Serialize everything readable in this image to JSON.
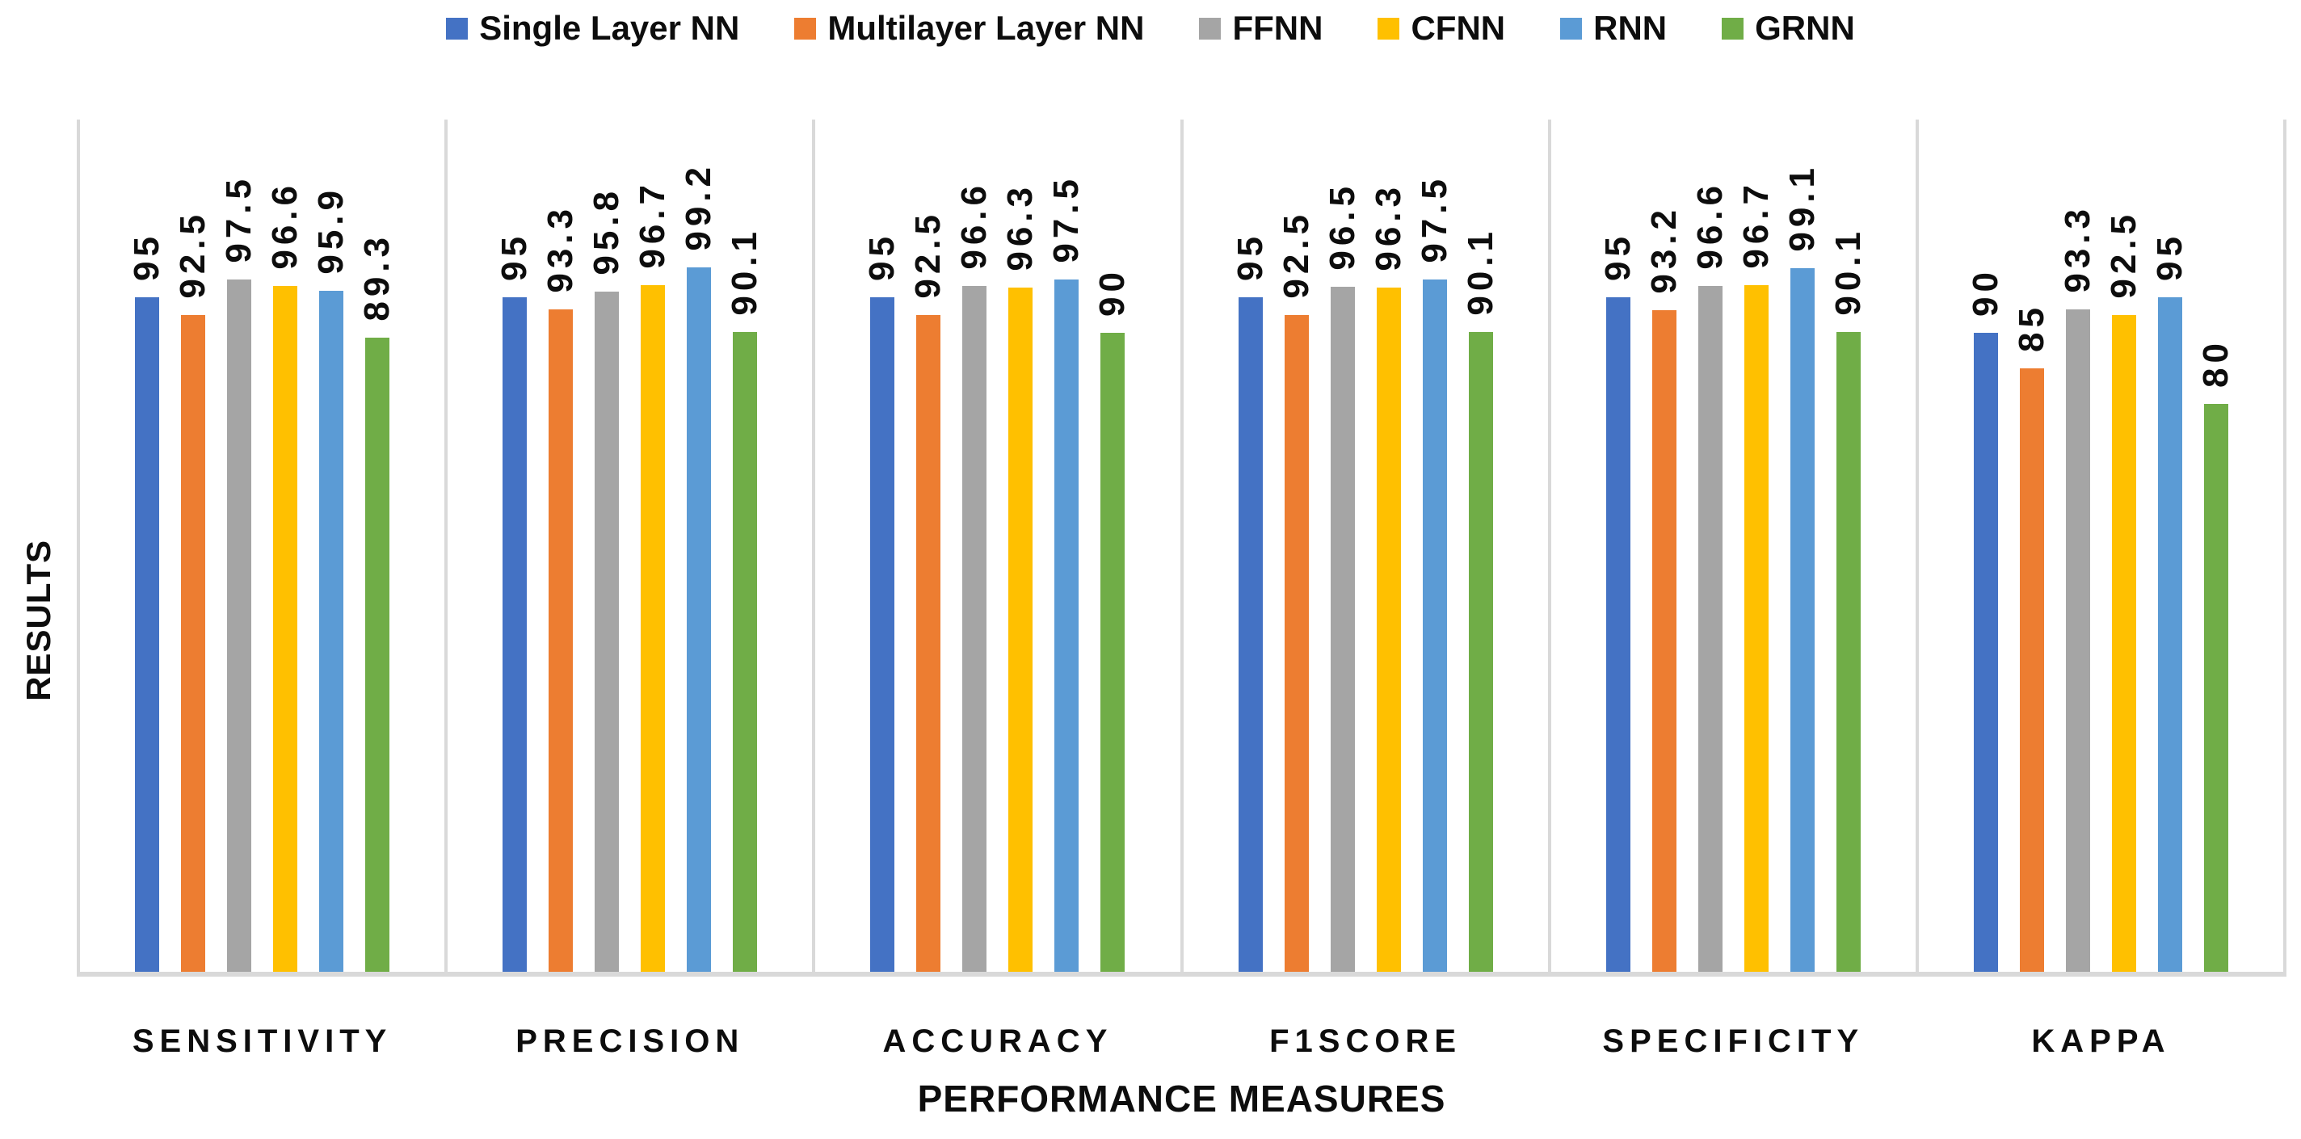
{
  "chart_data": {
    "type": "bar",
    "title": "",
    "xlabel": "PERFORMANCE MEASURES",
    "ylabel": "RESULTS",
    "categories": [
      "SENSITIVITY",
      "PRECISION",
      "ACCURACY",
      "F1SCORE",
      "SPECIFICITY",
      "KAPPA"
    ],
    "series": [
      {
        "name": "Single Layer NN",
        "color": "#4472C4",
        "values": [
          95,
          95,
          95,
          95,
          95,
          90
        ]
      },
      {
        "name": "Multilayer Layer NN",
        "color": "#ED7D31",
        "values": [
          92.5,
          93.3,
          92.5,
          92.5,
          93.2,
          85
        ]
      },
      {
        "name": "FFNN",
        "color": "#A5A5A5",
        "values": [
          97.5,
          95.8,
          96.6,
          96.5,
          96.6,
          93.3
        ]
      },
      {
        "name": "CFNN",
        "color": "#FFC000",
        "values": [
          96.6,
          96.7,
          96.3,
          96.3,
          96.7,
          92.5
        ]
      },
      {
        "name": "RNN",
        "color": "#5B9BD5",
        "values": [
          95.9,
          99.2,
          97.5,
          97.5,
          99.1,
          95
        ]
      },
      {
        "name": "GRNN",
        "color": "#70AD47",
        "values": [
          89.3,
          90.1,
          90,
          90.1,
          90.1,
          80
        ]
      }
    ],
    "ylim": [
      0,
      120
    ],
    "y_ticks_visible": false,
    "data_labels": "rotated-vertical-above-bars",
    "legend_position": "top-center",
    "gridlines": "vertical-panel-separators-and-baseline"
  },
  "colors": {
    "axis_line": "#D9D9D9",
    "label_text": "#0D0D0D",
    "background": "#FFFFFF"
  }
}
